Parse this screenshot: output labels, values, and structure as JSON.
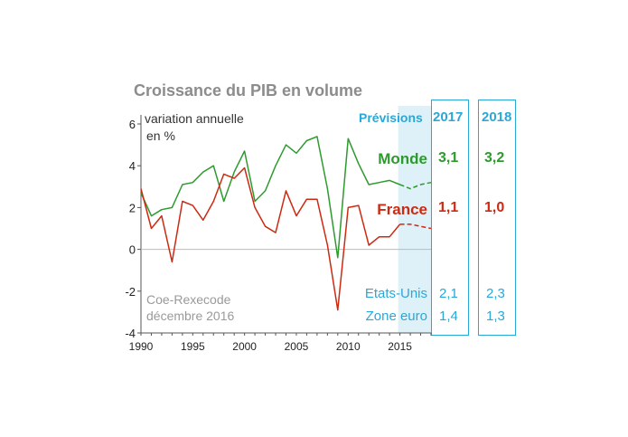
{
  "chart_data": {
    "type": "line",
    "title": "Croissance du PIB en volume",
    "ylabel_line1": "variation annuelle",
    "ylabel_line2": "en %",
    "source_line1": "Coe-Rexecode",
    "source_line2": "décembre 2016",
    "xlim": [
      1990,
      2018
    ],
    "ylim": [
      -4,
      6
    ],
    "xticks": [
      1990,
      1995,
      2000,
      2005,
      2010,
      2015
    ],
    "yticks": [
      6,
      4,
      2,
      0,
      -2,
      -4
    ],
    "forecast_start": 2015,
    "series": [
      {
        "name": "Monde",
        "color": "#2e9a2e",
        "x": [
          1990,
          1991,
          1992,
          1993,
          1994,
          1995,
          1996,
          1997,
          1998,
          1999,
          2000,
          2001,
          2002,
          2003,
          2004,
          2005,
          2006,
          2007,
          2008,
          2009,
          2010,
          2011,
          2012,
          2013,
          2014,
          2015
        ],
        "values": [
          2.7,
          1.6,
          1.9,
          2.0,
          3.1,
          3.2,
          3.7,
          4.0,
          2.3,
          3.7,
          4.7,
          2.3,
          2.8,
          4.0,
          5.0,
          4.6,
          5.2,
          5.4,
          2.9,
          -0.4,
          5.3,
          4.1,
          3.1,
          3.2,
          3.3,
          3.1
        ],
        "forecast_x": [
          2015,
          2016,
          2017,
          2018
        ],
        "forecast_values": [
          3.1,
          2.9,
          3.1,
          3.2
        ]
      },
      {
        "name": "France",
        "color": "#cc2a12",
        "x": [
          1990,
          1991,
          1992,
          1993,
          1994,
          1995,
          1996,
          1997,
          1998,
          1999,
          2000,
          2001,
          2002,
          2003,
          2004,
          2005,
          2006,
          2007,
          2008,
          2009,
          2010,
          2011,
          2012,
          2013,
          2014,
          2015
        ],
        "values": [
          2.9,
          1.0,
          1.6,
          -0.6,
          2.3,
          2.1,
          1.4,
          2.3,
          3.6,
          3.4,
          3.9,
          2.0,
          1.1,
          0.8,
          2.8,
          1.6,
          2.4,
          2.4,
          0.2,
          -2.9,
          2.0,
          2.1,
          0.2,
          0.6,
          0.6,
          1.2
        ],
        "forecast_x": [
          2015,
          2016,
          2017,
          2018
        ],
        "forecast_values": [
          1.2,
          1.2,
          1.1,
          1.0
        ]
      }
    ],
    "forecast_table": {
      "header": "Prévisions",
      "years": [
        "2017",
        "2018"
      ],
      "rows": [
        {
          "label": "Monde",
          "v2017": "3,1",
          "v2018": "3,2",
          "color": "#2e9a2e"
        },
        {
          "label": "France",
          "v2017": "1,1",
          "v2018": "1,0",
          "color": "#cc2a12"
        },
        {
          "label": "Etats-Unis",
          "v2017": "2,1",
          "v2018": "2,3",
          "color": "#29a8d8"
        },
        {
          "label": "Zone euro",
          "v2017": "1,4",
          "v2018": "1,3",
          "color": "#29a8d8"
        }
      ]
    }
  }
}
